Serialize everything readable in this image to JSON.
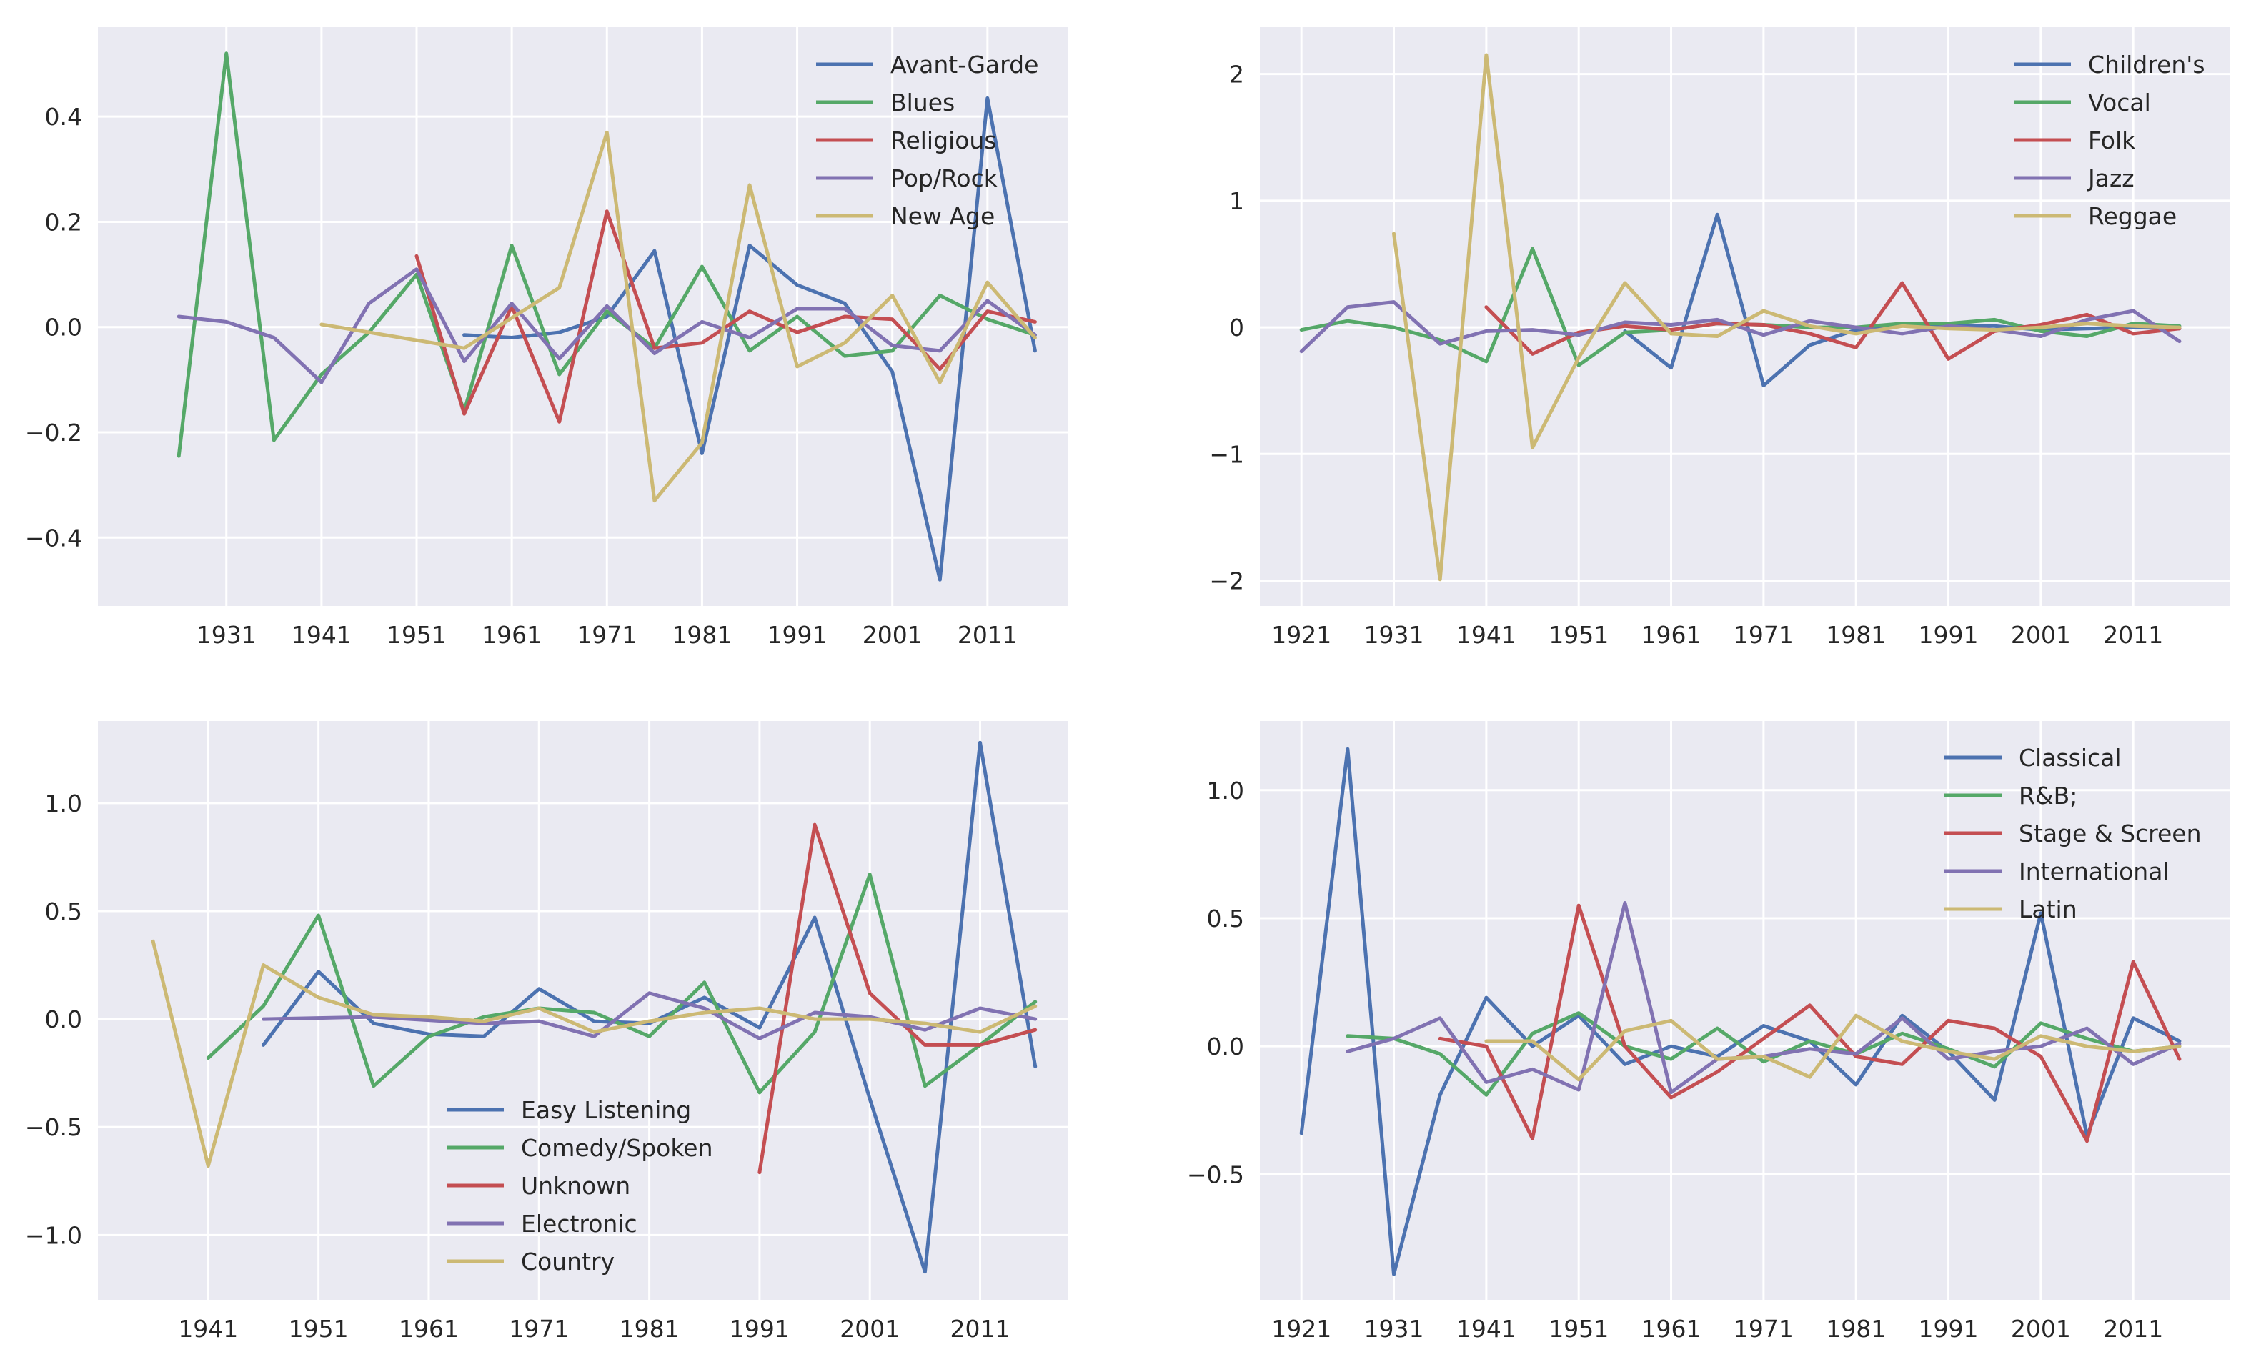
{
  "palette": [
    "#4c72b0",
    "#55a868",
    "#c44e52",
    "#8172b2",
    "#ccb974"
  ],
  "chart_data": [
    {
      "type": "line",
      "title": "",
      "xlabel": "",
      "ylabel": "",
      "xlim": [
        1917.5,
        2019.5
      ],
      "ylim": [
        -0.53,
        0.57
      ],
      "xticks": [
        1931,
        1941,
        1951,
        1961,
        1971,
        1981,
        1991,
        2001,
        2011
      ],
      "yticks": [
        -0.4,
        -0.2,
        0.0,
        0.2,
        0.4
      ],
      "ytick_labels": [
        "−0.4",
        "−0.2",
        "0.0",
        "0.2",
        "0.4"
      ],
      "legend_position": "upper right",
      "grid": true,
      "series": [
        {
          "name": "Avant-Garde",
          "x": [
            1956,
            1961,
            1966,
            1971,
            1976,
            1981,
            1986,
            1991,
            1996,
            2001,
            2006,
            2011,
            2016
          ],
          "values": [
            -0.015,
            -0.02,
            -0.01,
            0.02,
            0.145,
            -0.24,
            0.155,
            0.08,
            0.045,
            -0.085,
            -0.48,
            0.435,
            -0.045
          ]
        },
        {
          "name": "Blues",
          "x": [
            1926,
            1931,
            1936,
            1941,
            1946,
            1951,
            1956,
            1961,
            1966,
            1971,
            1976,
            1981,
            1986,
            1991,
            1996,
            2001,
            2006,
            2011,
            2016
          ],
          "values": [
            -0.245,
            0.52,
            -0.215,
            -0.09,
            -0.01,
            0.1,
            -0.16,
            0.155,
            -0.09,
            0.03,
            -0.04,
            0.115,
            -0.045,
            0.02,
            -0.055,
            -0.045,
            0.06,
            0.015,
            -0.015
          ]
        },
        {
          "name": "Religious",
          "x": [
            1951,
            1956,
            1961,
            1966,
            1971,
            1976,
            1981,
            1986,
            1991,
            1996,
            2001,
            2006,
            2011,
            2016
          ],
          "values": [
            0.135,
            -0.165,
            0.04,
            -0.18,
            0.22,
            -0.04,
            -0.03,
            0.03,
            -0.01,
            0.02,
            0.015,
            -0.08,
            0.03,
            0.01
          ]
        },
        {
          "name": "Pop/Rock",
          "x": [
            1926,
            1931,
            1936,
            1941,
            1946,
            1951,
            1956,
            1961,
            1966,
            1971,
            1976,
            1981,
            1986,
            1991,
            1996,
            2001,
            2006,
            2011,
            2016
          ],
          "values": [
            0.02,
            0.01,
            -0.02,
            -0.105,
            0.045,
            0.11,
            -0.065,
            0.045,
            -0.06,
            0.04,
            -0.05,
            0.01,
            -0.02,
            0.035,
            0.035,
            -0.035,
            -0.045,
            0.05,
            -0.015
          ]
        },
        {
          "name": "New Age",
          "x": [
            1941,
            1956,
            1966,
            1971,
            1976,
            1981,
            1986,
            1991,
            1996,
            2001,
            2006,
            2011,
            2016
          ],
          "values": [
            0.005,
            -0.04,
            0.075,
            0.37,
            -0.33,
            -0.22,
            0.27,
            -0.075,
            -0.03,
            0.06,
            -0.105,
            0.085,
            -0.02
          ]
        }
      ]
    },
    {
      "type": "line",
      "title": "",
      "xlabel": "",
      "ylabel": "",
      "xlim": [
        1916.5,
        2021.5
      ],
      "ylim": [
        -2.2,
        2.37
      ],
      "xticks": [
        1921,
        1931,
        1941,
        1951,
        1961,
        1971,
        1981,
        1991,
        2001,
        2011
      ],
      "yticks": [
        -2,
        -1,
        0,
        1,
        2
      ],
      "ytick_labels": [
        "−2",
        "−1",
        "0",
        "1",
        "2"
      ],
      "legend_position": "upper right",
      "grid": true,
      "series": [
        {
          "name": "Children's",
          "x": [
            1956,
            1961,
            1966,
            1971,
            1976,
            1981,
            1986,
            1991,
            1996,
            2001,
            2006,
            2011,
            2016
          ],
          "values": [
            -0.03,
            -0.32,
            0.89,
            -0.46,
            -0.14,
            -0.02,
            0.02,
            0.02,
            0.01,
            -0.02,
            -0.01,
            0.0,
            -0.01
          ]
        },
        {
          "name": "Vocal",
          "x": [
            1921,
            1926,
            1931,
            1936,
            1941,
            1946,
            1951,
            1956,
            1961,
            1966,
            1971,
            1976,
            1981,
            1986,
            1991,
            1996,
            2001,
            2006,
            2011,
            2016
          ],
          "values": [
            -0.02,
            0.05,
            0.0,
            -0.1,
            -0.27,
            0.62,
            -0.3,
            -0.04,
            -0.02,
            0.03,
            0.02,
            0.0,
            0.0,
            0.03,
            0.03,
            0.06,
            -0.03,
            -0.07,
            0.03,
            0.01
          ]
        },
        {
          "name": "Folk",
          "x": [
            1941,
            1946,
            1951,
            1956,
            1961,
            1966,
            1971,
            1976,
            1981,
            1986,
            1991,
            1996,
            2001,
            2006,
            2011,
            2016
          ],
          "values": [
            0.16,
            -0.21,
            -0.04,
            0.01,
            -0.02,
            0.03,
            0.02,
            -0.05,
            -0.16,
            0.35,
            -0.25,
            -0.03,
            0.02,
            0.1,
            -0.05,
            -0.01
          ]
        },
        {
          "name": "Jazz",
          "x": [
            1921,
            1926,
            1931,
            1936,
            1941,
            1946,
            1951,
            1956,
            1961,
            1966,
            1971,
            1976,
            1981,
            1986,
            1991,
            1996,
            2001,
            2006,
            2011,
            2016
          ],
          "values": [
            -0.19,
            0.16,
            0.2,
            -0.13,
            -0.03,
            -0.02,
            -0.06,
            0.04,
            0.02,
            0.06,
            -0.06,
            0.05,
            0.0,
            -0.05,
            0.01,
            -0.02,
            -0.07,
            0.06,
            0.13,
            -0.11
          ]
        },
        {
          "name": "Reggae",
          "x": [
            1931,
            1936,
            1941,
            1946,
            1951,
            1956,
            1961,
            1966,
            1971,
            1976,
            1981,
            1986,
            1991,
            1996,
            2001,
            2006,
            2011,
            2016
          ],
          "values": [
            0.74,
            -1.99,
            2.15,
            -0.95,
            -0.24,
            0.35,
            -0.05,
            -0.07,
            0.13,
            0.01,
            -0.05,
            0.01,
            -0.01,
            -0.02,
            0.0,
            0.03,
            0.01,
            0.0
          ]
        }
      ]
    },
    {
      "type": "line",
      "title": "",
      "xlabel": "",
      "ylabel": "",
      "xlim": [
        1931,
        2019
      ],
      "ylim": [
        -1.3,
        1.38
      ],
      "xticks": [
        1941,
        1951,
        1961,
        1971,
        1981,
        1991,
        2001,
        2011
      ],
      "yticks": [
        -1.0,
        -0.5,
        0.0,
        0.5,
        1.0
      ],
      "ytick_labels": [
        "−1.0",
        "−0.5",
        "0.0",
        "0.5",
        "1.0"
      ],
      "legend_position": "lower center",
      "grid": true,
      "series": [
        {
          "name": "Easy Listening",
          "x": [
            1946,
            1951,
            1956,
            1961,
            1966,
            1971,
            1976,
            1981,
            1986,
            1991,
            1996,
            2001,
            2006,
            2011,
            2016
          ],
          "values": [
            -0.12,
            0.22,
            -0.02,
            -0.07,
            -0.08,
            0.14,
            -0.01,
            -0.02,
            0.1,
            -0.04,
            0.47,
            -0.37,
            -1.17,
            1.28,
            -0.22
          ]
        },
        {
          "name": "Comedy/Spoken",
          "x": [
            1941,
            1946,
            1951,
            1956,
            1961,
            1966,
            1971,
            1976,
            1981,
            1986,
            1991,
            1996,
            2001,
            2006,
            2011,
            2016
          ],
          "values": [
            -0.18,
            0.06,
            0.48,
            -0.31,
            -0.08,
            0.01,
            0.05,
            0.03,
            -0.08,
            0.17,
            -0.34,
            -0.06,
            0.67,
            -0.31,
            -0.12,
            0.08
          ]
        },
        {
          "name": "Unknown",
          "x": [
            1991,
            1996,
            2001,
            2006,
            2011,
            2016
          ],
          "values": [
            -0.71,
            0.9,
            0.12,
            -0.12,
            -0.12,
            -0.05
          ]
        },
        {
          "name": "Electronic",
          "x": [
            1946,
            1956,
            1966,
            1971,
            1976,
            1981,
            1986,
            1991,
            1996,
            2001,
            2006,
            2011,
            2016
          ],
          "values": [
            0.0,
            0.01,
            -0.02,
            -0.01,
            -0.08,
            0.12,
            0.05,
            -0.09,
            0.03,
            0.01,
            -0.05,
            0.05,
            0.0
          ]
        },
        {
          "name": "Country",
          "x": [
            1936,
            1941,
            1946,
            1951,
            1956,
            1961,
            1966,
            1971,
            1976,
            1981,
            1986,
            1991,
            1996,
            2001,
            2006,
            2011,
            2016
          ],
          "values": [
            0.36,
            -0.68,
            0.25,
            0.1,
            0.02,
            0.01,
            -0.01,
            0.05,
            -0.06,
            -0.01,
            0.03,
            0.05,
            0.0,
            0.0,
            -0.02,
            -0.06,
            0.06
          ]
        }
      ]
    },
    {
      "type": "line",
      "title": "",
      "xlabel": "",
      "ylabel": "",
      "xlim": [
        1916.5,
        2021.5
      ],
      "ylim": [
        -0.99,
        1.27
      ],
      "xticks": [
        1921,
        1931,
        1941,
        1951,
        1961,
        1971,
        1981,
        1991,
        2001,
        2011
      ],
      "yticks": [
        -0.5,
        0.0,
        0.5,
        1.0
      ],
      "ytick_labels": [
        "−0.5",
        "0.0",
        "0.5",
        "1.0"
      ],
      "legend_position": "upper right",
      "grid": true,
      "series": [
        {
          "name": "Classical",
          "x": [
            1921,
            1926,
            1931,
            1936,
            1941,
            1946,
            1951,
            1956,
            1961,
            1966,
            1971,
            1976,
            1981,
            1986,
            1991,
            1996,
            2001,
            2006,
            2011,
            2016
          ],
          "values": [
            -0.34,
            1.16,
            -0.89,
            -0.19,
            0.19,
            0.0,
            0.12,
            -0.07,
            0.0,
            -0.04,
            0.08,
            0.02,
            -0.15,
            0.12,
            -0.02,
            -0.21,
            0.52,
            -0.35,
            0.11,
            0.02
          ]
        },
        {
          "name": "R&B;",
          "x": [
            1926,
            1931,
            1936,
            1941,
            1946,
            1951,
            1956,
            1961,
            1966,
            1971,
            1976,
            1981,
            1986,
            1991,
            1996,
            2001,
            2006,
            2011,
            2016
          ],
          "values": [
            0.04,
            0.03,
            -0.03,
            -0.19,
            0.05,
            0.13,
            0.0,
            -0.05,
            0.07,
            -0.06,
            0.02,
            -0.03,
            0.05,
            -0.01,
            -0.08,
            0.09,
            0.03,
            -0.02,
            0.0
          ]
        },
        {
          "name": "Stage & Screen",
          "x": [
            1936,
            1941,
            1946,
            1951,
            1956,
            1961,
            1966,
            1971,
            1976,
            1981,
            1986,
            1991,
            1996,
            2001,
            2006,
            2011,
            2016
          ],
          "values": [
            0.03,
            0.0,
            -0.36,
            0.55,
            0.0,
            -0.2,
            -0.1,
            0.03,
            0.16,
            -0.04,
            -0.07,
            0.1,
            0.07,
            -0.04,
            -0.37,
            0.33,
            -0.05
          ]
        },
        {
          "name": "International",
          "x": [
            1926,
            1931,
            1936,
            1941,
            1946,
            1951,
            1956,
            1961,
            1966,
            1971,
            1976,
            1981,
            1986,
            1991,
            1996,
            2001,
            2006,
            2011,
            2016
          ],
          "values": [
            -0.02,
            0.03,
            0.11,
            -0.14,
            -0.09,
            -0.17,
            0.56,
            -0.18,
            -0.05,
            -0.04,
            -0.01,
            -0.03,
            0.11,
            -0.05,
            -0.02,
            0.0,
            0.07,
            -0.07,
            0.01
          ]
        },
        {
          "name": "Latin",
          "x": [
            1941,
            1946,
            1951,
            1956,
            1961,
            1966,
            1971,
            1976,
            1981,
            1986,
            1991,
            1996,
            2001,
            2006,
            2011,
            2016
          ],
          "values": [
            0.02,
            0.02,
            -0.13,
            0.06,
            0.1,
            -0.05,
            -0.04,
            -0.12,
            0.12,
            0.02,
            -0.02,
            -0.05,
            0.04,
            0.0,
            -0.02,
            0.0
          ]
        }
      ]
    }
  ]
}
